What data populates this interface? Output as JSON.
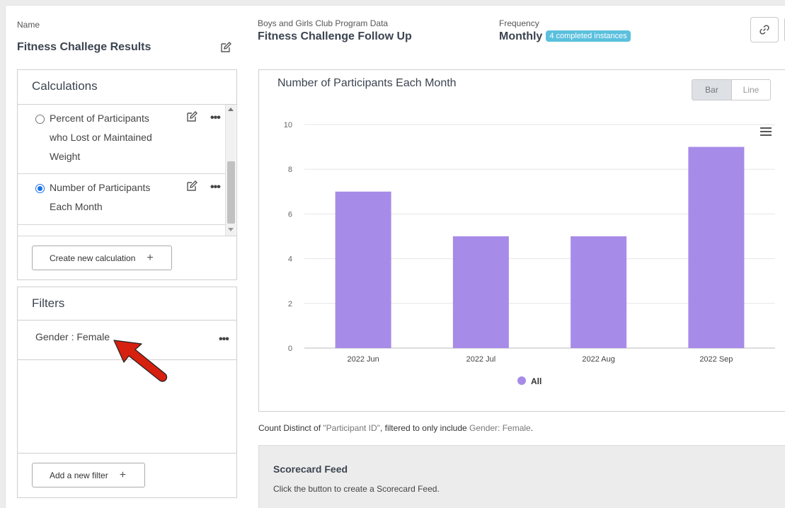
{
  "name_label": "Name",
  "name_value": "Fitness Challege Results",
  "program_label": "Boys and Girls Club Program Data",
  "program_value": "Fitness Challenge Follow Up",
  "frequency_label": "Frequency",
  "frequency_value": "Monthly",
  "instances_badge": "4 completed instances",
  "calculations": {
    "title": "Calculations",
    "items": [
      {
        "label": "Percent of Participants who Lost or Maintained Weight",
        "selected": false
      },
      {
        "label": "Number of Participants Each Month",
        "selected": true
      }
    ],
    "create_label": "Create new calculation",
    "plus": "+"
  },
  "filters": {
    "title": "Filters",
    "items": [
      {
        "label": "Gender : Female"
      }
    ],
    "add_label": "Add a new filter",
    "plus": "+"
  },
  "chart_toggle": {
    "bar": "Bar",
    "line": "Line",
    "active": "Bar"
  },
  "chart_data": {
    "type": "bar",
    "title": "Number of Participants Each Month",
    "categories": [
      "2022 Jun",
      "2022 Jul",
      "2022 Aug",
      "2022 Sep"
    ],
    "series": [
      {
        "name": "All",
        "values": [
          7,
          5,
          5,
          9
        ],
        "color": "#a78be8"
      }
    ],
    "yticks": [
      "0",
      "2",
      "4",
      "6",
      "8",
      "10"
    ],
    "ylim": [
      0,
      10
    ],
    "legend": "bottom-center",
    "grid": true
  },
  "caption": {
    "prefix": "Count Distinct of ",
    "field": "\"Participant ID\"",
    "middle": ", filtered to only include ",
    "filter": "Gender: Female",
    "suffix": "."
  },
  "scorecard": {
    "title": "Scorecard Feed",
    "desc": "Click the button to create a Scorecard Feed."
  },
  "colors": {
    "accent": "#5bc0de",
    "bar": "#a78be8",
    "annotation": "#d62010"
  }
}
